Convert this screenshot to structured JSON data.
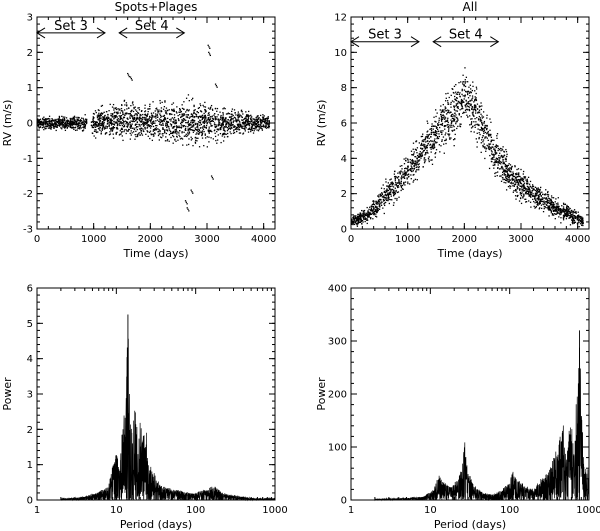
{
  "chart_data": [
    {
      "type": "scatter",
      "title": "Spots+Plages",
      "xlabel": "Time (days)",
      "ylabel": "RV (m/s)",
      "xlim": [
        0,
        4200
      ],
      "ylim": [
        -3,
        3
      ],
      "xticks": [
        0,
        1000,
        2000,
        3000,
        4000
      ],
      "yticks": [
        -3,
        -2,
        -1,
        0,
        1,
        2,
        3
      ],
      "annotations": [
        {
          "text": "Set 3",
          "x_start": 0,
          "x_end": 1200,
          "y": 2.55
        },
        {
          "text": "Set 4",
          "x_start": 1450,
          "x_end": 2600,
          "y": 2.55
        }
      ],
      "series": [
        {
          "marker": "dot",
          "envelope": {
            "x": [
              0,
              500,
              900,
              1000,
              1500,
              2000,
              2500,
              2700,
              3000,
              3500,
              4100
            ],
            "center": [
              0.0,
              0.0,
              0.0,
              0.0,
              0.1,
              0.05,
              0.0,
              0.0,
              0.0,
              0.0,
              0.0
            ],
            "spread": [
              0.2,
              0.25,
              0.3,
              0.5,
              0.7,
              0.7,
              0.8,
              0.9,
              0.8,
              0.5,
              0.25
            ]
          },
          "outliers": {
            "x": [
              2620,
              2650,
              2720,
              3020,
              3030,
              3150,
              3080,
              1600,
              1650
            ],
            "y": [
              -2.2,
              -2.4,
              -1.9,
              2.2,
              2.0,
              1.1,
              -1.5,
              1.4,
              1.3
            ]
          }
        }
      ]
    },
    {
      "type": "scatter",
      "title": "All",
      "xlabel": "Time (days)",
      "ylabel": "RV (m/s)",
      "xlim": [
        0,
        4200
      ],
      "ylim": [
        0,
        12
      ],
      "xticks": [
        0,
        1000,
        2000,
        3000,
        4000
      ],
      "yticks": [
        0,
        2,
        4,
        6,
        8,
        10,
        12
      ],
      "annotations": [
        {
          "text": "Set 3",
          "x_start": 0,
          "x_end": 1200,
          "y": 10.6
        },
        {
          "text": "Set 4",
          "x_start": 1450,
          "x_end": 2600,
          "y": 10.6
        }
      ],
      "series": [
        {
          "marker": "dot",
          "envelope": {
            "x": [
              0,
              300,
              500,
              800,
              1000,
              1300,
              1600,
              1800,
              2000,
              2200,
              2500,
              2800,
              3200,
              3600,
              4000,
              4100
            ],
            "center": [
              0.4,
              0.8,
              1.5,
              2.5,
              3.2,
              4.5,
              6.0,
              6.5,
              7.5,
              6.5,
              4.5,
              3.0,
              2.0,
              1.2,
              0.6,
              0.4
            ],
            "spread": [
              0.4,
              0.6,
              0.9,
              1.2,
              1.4,
              1.6,
              1.9,
              2.0,
              2.0,
              1.9,
              1.7,
              1.3,
              1.0,
              0.8,
              0.5,
              0.4
            ]
          }
        }
      ]
    },
    {
      "type": "line",
      "xlabel": "Period (days)",
      "ylabel": "Power",
      "xscale": "log",
      "xlim": [
        1,
        1000
      ],
      "ylim": [
        0,
        6
      ],
      "xticks": [
        1,
        10,
        100,
        1000
      ],
      "yticks": [
        0,
        1,
        2,
        3,
        4,
        5,
        6
      ],
      "series": [
        {
          "peaks": {
            "period": [
              2.5,
              4,
              6,
              8,
              9,
              10,
              11,
              12,
              13,
              14,
              15,
              16,
              17,
              18,
              19,
              20,
              21,
              22,
              23,
              24,
              25,
              26,
              27,
              28,
              29,
              30,
              32,
              35,
              38,
              45,
              55,
              70,
              90,
              130,
              170,
              220,
              280,
              380,
              550
            ],
            "power": [
              0.05,
              0.1,
              0.25,
              0.4,
              1.1,
              1.5,
              0.8,
              2.3,
              2.8,
              5.25,
              2.6,
              1.9,
              3.0,
              2.4,
              1.3,
              2.7,
              1.6,
              2.1,
              1.4,
              2.2,
              1.2,
              1.0,
              1.1,
              0.9,
              0.7,
              0.8,
              0.6,
              0.5,
              0.4,
              0.35,
              0.3,
              0.25,
              0.2,
              0.3,
              0.4,
              0.2,
              0.15,
              0.1,
              0.05
            ]
          }
        }
      ]
    },
    {
      "type": "line",
      "xlabel": "Period (days)",
      "ylabel": "Power",
      "xscale": "log",
      "xlim": [
        1,
        1000
      ],
      "ylim": [
        0,
        400
      ],
      "xticks": [
        1,
        10,
        100,
        1000
      ],
      "yticks": [
        0,
        100,
        200,
        300,
        400
      ],
      "series": [
        {
          "peaks": {
            "period": [
              2,
              3,
              5,
              8,
              11,
              13,
              15,
              18,
              22,
              25,
              27,
              30,
              35,
              45,
              60,
              80,
              100,
              110,
              120,
              150,
              200,
              260,
              320,
              400,
              470,
              520,
              580,
              650,
              720,
              760,
              800,
              870
            ],
            "power": [
              2,
              3,
              4,
              6,
              20,
              50,
              35,
              25,
              40,
              60,
              120,
              55,
              30,
              15,
              10,
              20,
              35,
              60,
              40,
              30,
              20,
              45,
              60,
              100,
              150,
              80,
              160,
              100,
              250,
              320,
              200,
              60
            ]
          }
        }
      ]
    }
  ]
}
